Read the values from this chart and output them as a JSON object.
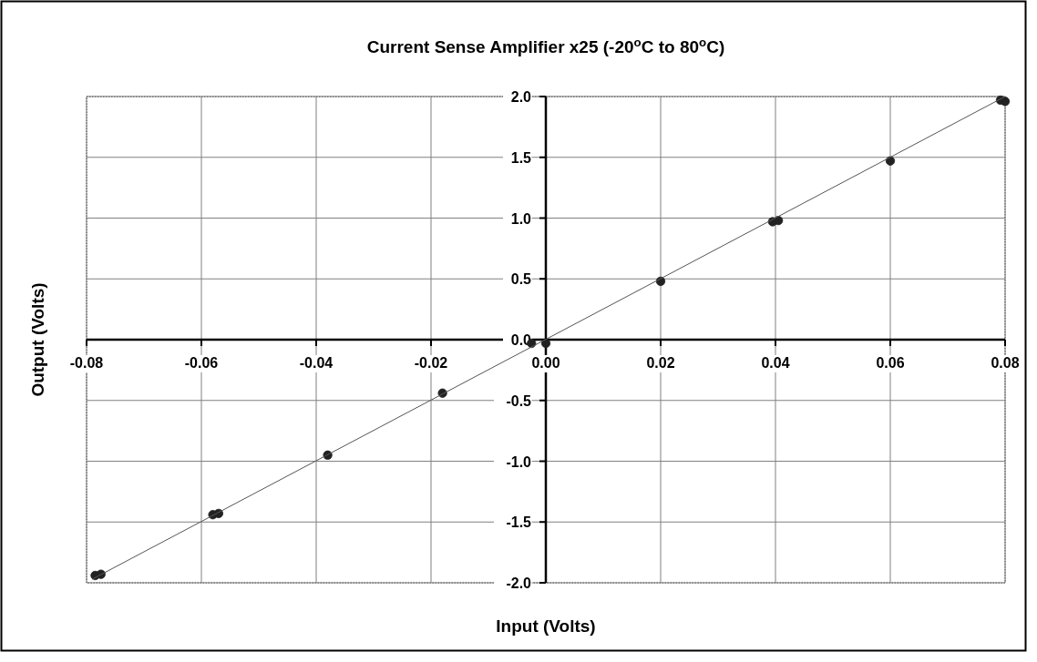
{
  "chart_data": {
    "type": "scatter",
    "title": "Current Sense Amplifier x25 (-20$^{o}$C to 80$^{o}$C)",
    "xlabel": "Input (Volts)",
    "ylabel": "Output (Volts)",
    "xlim": [
      -0.08,
      0.08
    ],
    "ylim": [
      -2.0,
      2.0
    ],
    "xticks": [
      {
        "value": -0.08,
        "label": "-0.08"
      },
      {
        "value": -0.06,
        "label": "-0.06"
      },
      {
        "value": -0.04,
        "label": "-0.04"
      },
      {
        "value": -0.02,
        "label": "-0.02"
      },
      {
        "value": 0,
        "label": "0.00"
      },
      {
        "value": 0.02,
        "label": "0.02"
      },
      {
        "value": 0.04,
        "label": "0.04"
      },
      {
        "value": 0.06,
        "label": "0.06"
      },
      {
        "value": 0.08,
        "label": "0.08"
      }
    ],
    "yticks": [
      {
        "value": -2,
        "label": "-2.0"
      },
      {
        "value": -1.5,
        "label": "-1.5"
      },
      {
        "value": -1,
        "label": "-1.0"
      },
      {
        "value": -0.5,
        "label": "-0.5"
      },
      {
        "value": 0,
        "label": "0.0"
      },
      {
        "value": 0.5,
        "label": "0.5"
      },
      {
        "value": 1,
        "label": "1.0"
      },
      {
        "value": 1.5,
        "label": "1.5"
      },
      {
        "value": 2,
        "label": "2.0"
      }
    ],
    "grid": true,
    "series": [
      {
        "marker": "circle",
        "color": "#222222",
        "x": [
          -0.0785,
          -0.0775,
          -0.058,
          -0.057,
          -0.038,
          -0.018,
          -0.0025,
          0.0,
          0.02,
          0.0395,
          0.0405,
          0.06,
          0.0792,
          0.08
        ],
        "values": [
          -1.94,
          -1.93,
          -1.44,
          -1.43,
          -0.95,
          -0.44,
          -0.03,
          -0.03,
          0.48,
          0.97,
          0.98,
          1.47,
          1.97,
          1.96
        ]
      },
      {
        "type": "line",
        "marker": "none",
        "color": "#555555",
        "x": [
          -0.079,
          0.08
        ],
        "values": [
          -1.97,
          2.0
        ]
      }
    ]
  }
}
